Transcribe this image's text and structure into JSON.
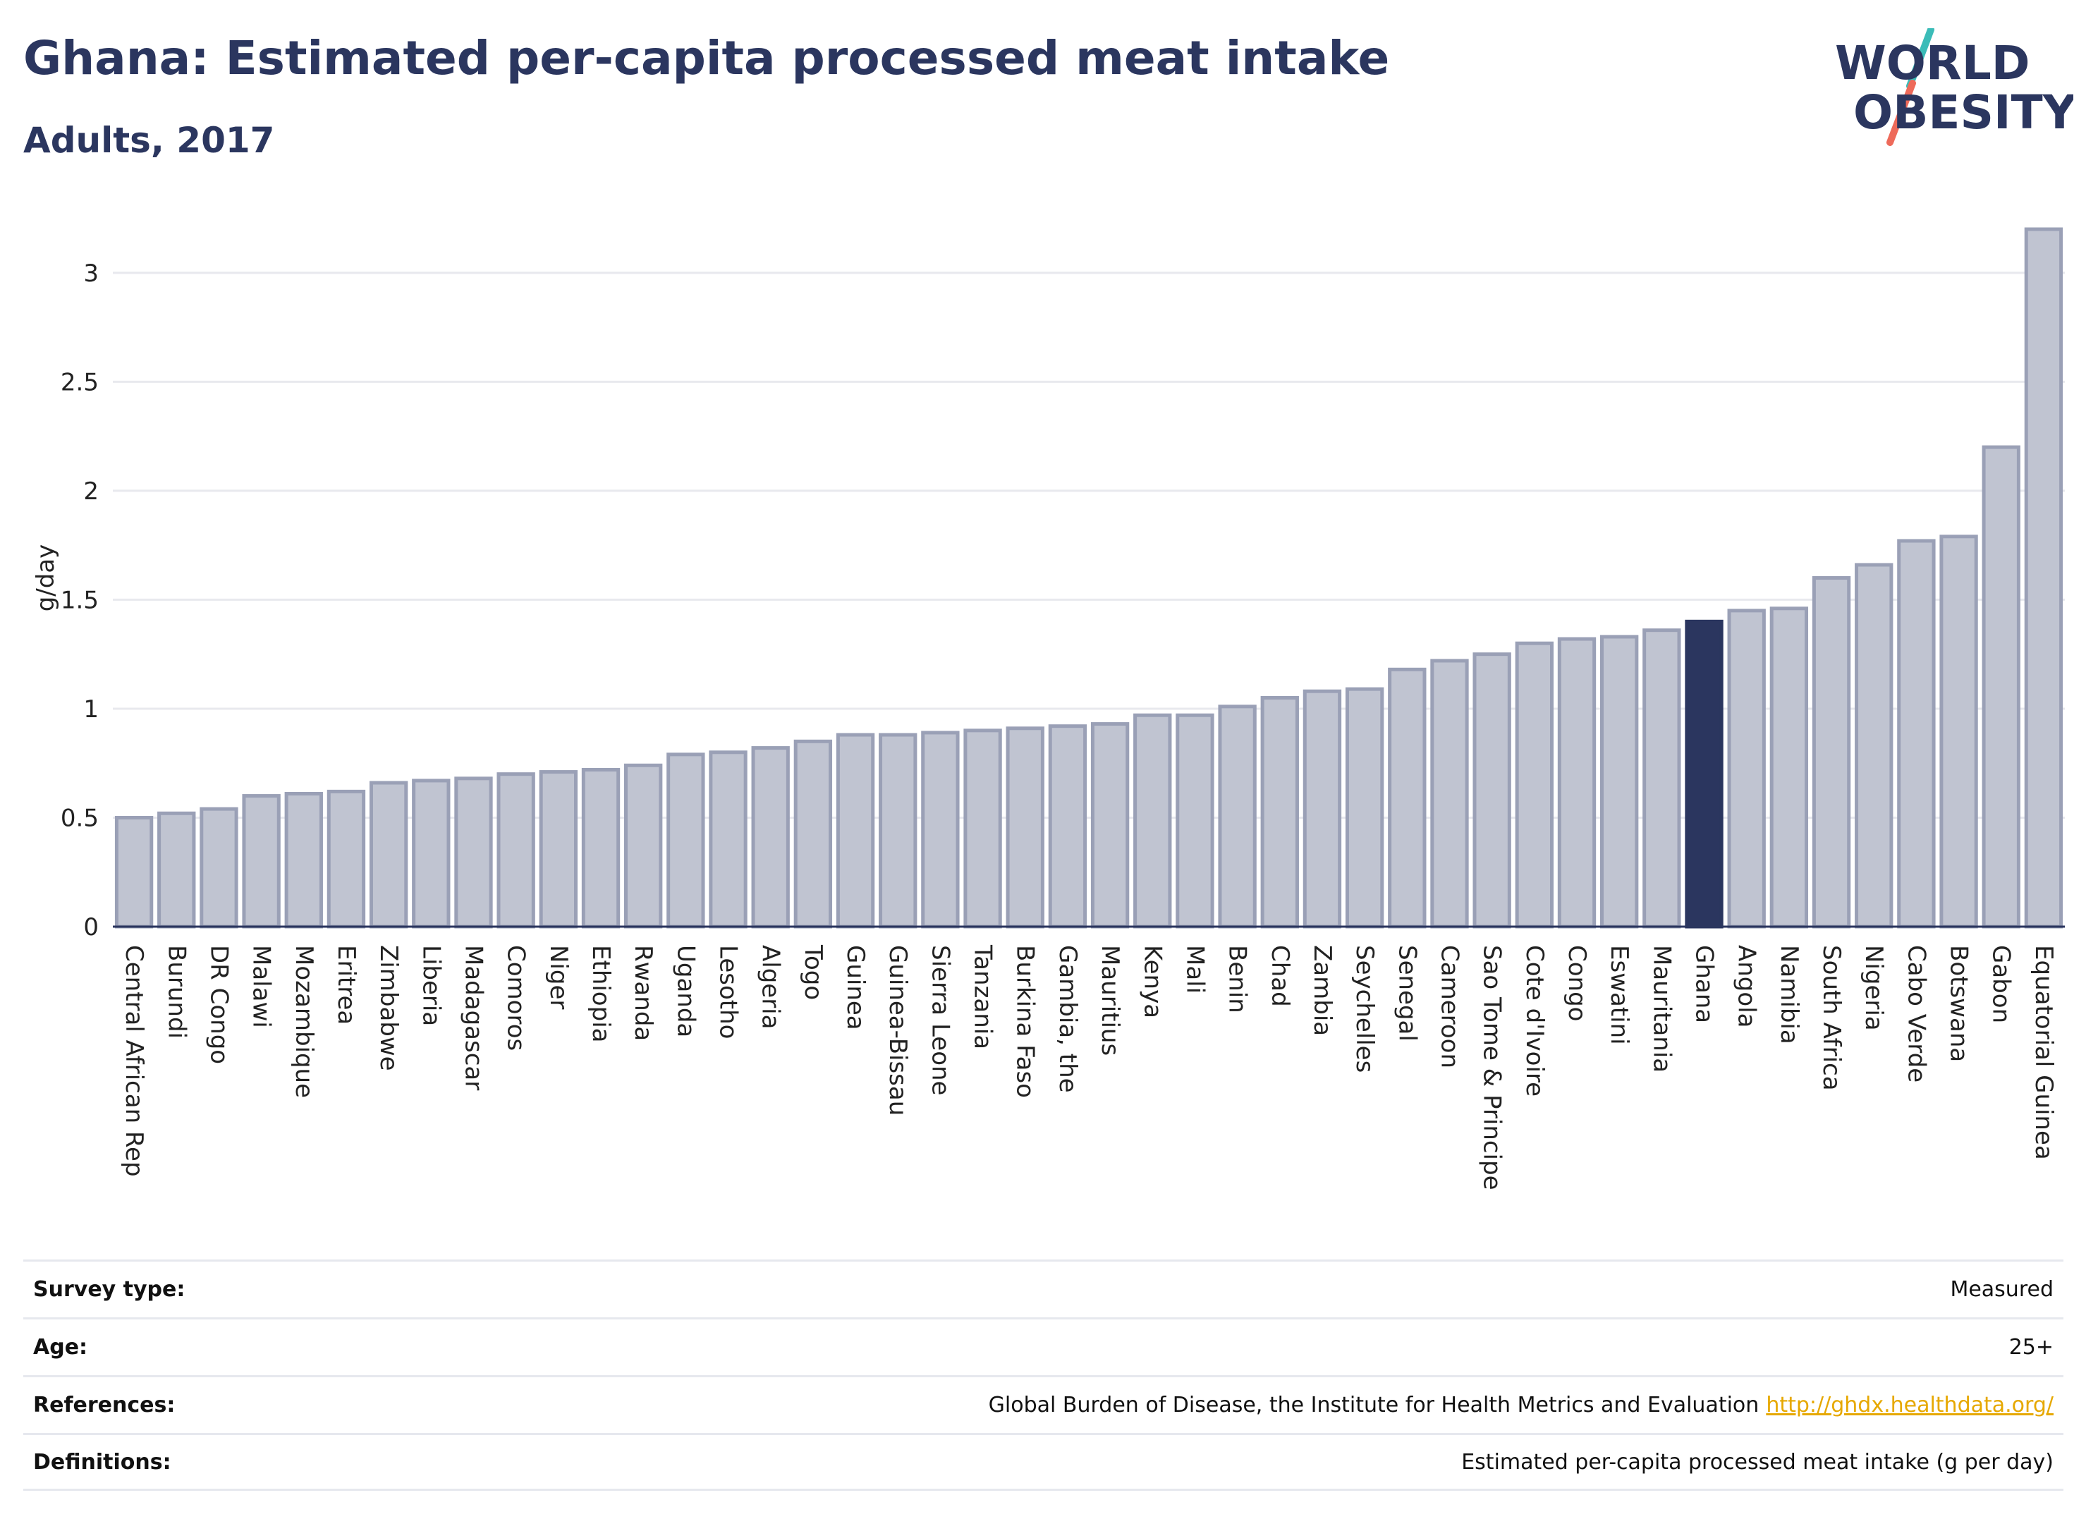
{
  "header": {
    "title": "Ghana: Estimated per-capita processed meat intake",
    "subtitle": "Adults, 2017"
  },
  "logo": {
    "line1": "WORLD",
    "line2": "OBESITY",
    "colors": {
      "text": "#2b365f",
      "slash_top": "#3bbcb8",
      "slash_bottom": "#ee6a5a"
    }
  },
  "chart_data": {
    "type": "bar",
    "ylabel": "g/day",
    "ylim": [
      0,
      3.2
    ],
    "yticks": [
      0,
      0.5,
      1,
      1.5,
      2,
      2.5,
      3
    ],
    "grid": true,
    "highlight": "Ghana",
    "colors": {
      "bar": "#c0c4d1",
      "bar_edge": "#9aa0b6",
      "highlight": "#2b365f",
      "grid": "#e8e9ee"
    },
    "categories": [
      "Central African Rep",
      "Burundi",
      "DR Congo",
      "Malawi",
      "Mozambique",
      "Eritrea",
      "Zimbabwe",
      "Liberia",
      "Madagascar",
      "Comoros",
      "Niger",
      "Ethiopia",
      "Rwanda",
      "Uganda",
      "Lesotho",
      "Algeria",
      "Togo",
      "Guinea",
      "Guinea-Bissau",
      "Sierra Leone",
      "Tanzania",
      "Burkina Faso",
      "Gambia, the",
      "Mauritius",
      "Kenya",
      "Mali",
      "Benin",
      "Chad",
      "Zambia",
      "Seychelles",
      "Senegal",
      "Cameroon",
      "Sao Tome & Principe",
      "Cote d'Ivoire",
      "Congo",
      "Eswatini",
      "Mauritania",
      "Ghana",
      "Angola",
      "Namibia",
      "South Africa",
      "Nigeria",
      "Cabo Verde",
      "Botswana",
      "Gabon",
      "Equatorial Guinea"
    ],
    "values": [
      0.5,
      0.52,
      0.54,
      0.6,
      0.61,
      0.62,
      0.66,
      0.67,
      0.68,
      0.7,
      0.71,
      0.72,
      0.74,
      0.79,
      0.8,
      0.82,
      0.85,
      0.88,
      0.88,
      0.89,
      0.9,
      0.91,
      0.92,
      0.93,
      0.97,
      0.97,
      1.01,
      1.05,
      1.08,
      1.09,
      1.18,
      1.22,
      1.25,
      1.3,
      1.32,
      1.33,
      1.36,
      1.4,
      1.45,
      1.46,
      1.6,
      1.66,
      1.77,
      1.79,
      2.2,
      3.2
    ]
  },
  "info": {
    "survey_type_label": "Survey type:",
    "survey_type_value": "Measured",
    "age_label": "Age:",
    "age_value": "25+",
    "references_label": "References:",
    "references_value": "Global Burden of Disease, the Institute for Health Metrics and Evaluation",
    "references_link": "http://ghdx.healthdata.org/",
    "definitions_label": "Definitions:",
    "definitions_value": "Estimated per-capita processed meat intake (g per day)"
  }
}
